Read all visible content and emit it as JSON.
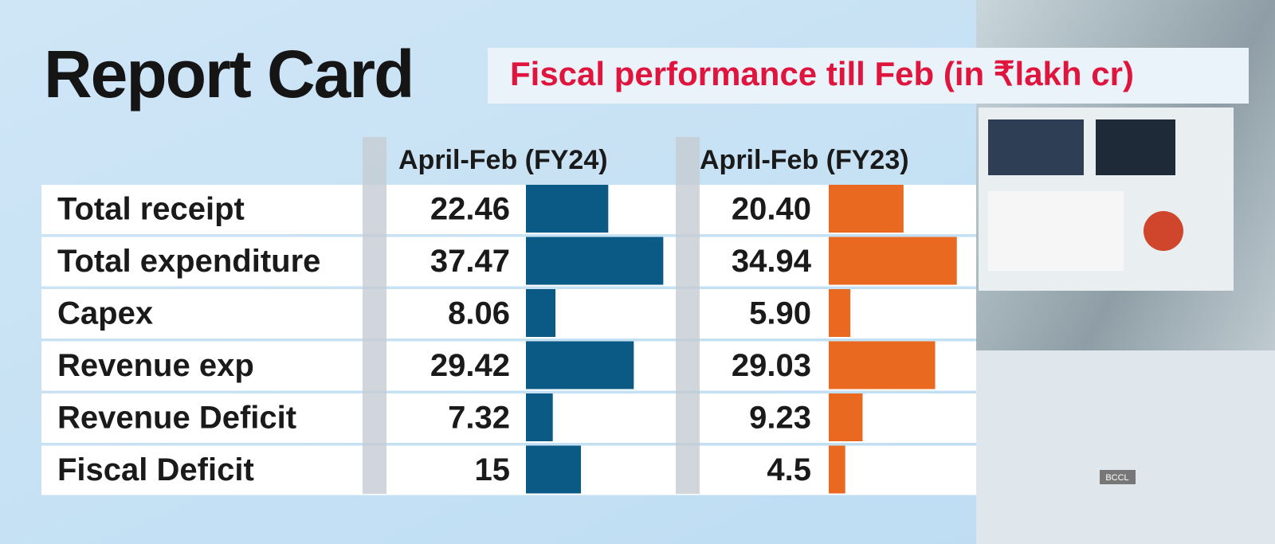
{
  "chart_data": {
    "type": "bar",
    "orientation": "horizontal",
    "title": "Report Card",
    "subtitle": "Fiscal performance till Feb (in ₹lakh cr)",
    "categories": [
      "Total receipt",
      "Total expenditure",
      "Capex",
      "Revenue exp",
      "Revenue Deficit",
      "Fiscal Deficit"
    ],
    "series": [
      {
        "name": "April-Feb (FY24)",
        "color": "#0b5a85",
        "values": [
          22.46,
          37.47,
          8.06,
          29.42,
          7.32,
          15
        ],
        "value_labels": [
          "22.46",
          "37.47",
          "8.06",
          "29.42",
          "7.32",
          "15"
        ]
      },
      {
        "name": "April-Feb (FY23)",
        "color": "#e8691f",
        "values": [
          20.4,
          34.94,
          5.9,
          29.03,
          9.23,
          4.5
        ],
        "value_labels": [
          "20.40",
          "34.94",
          "5.90",
          "29.03",
          "9.23",
          "4.5"
        ]
      }
    ],
    "credit": "BCCL"
  }
}
